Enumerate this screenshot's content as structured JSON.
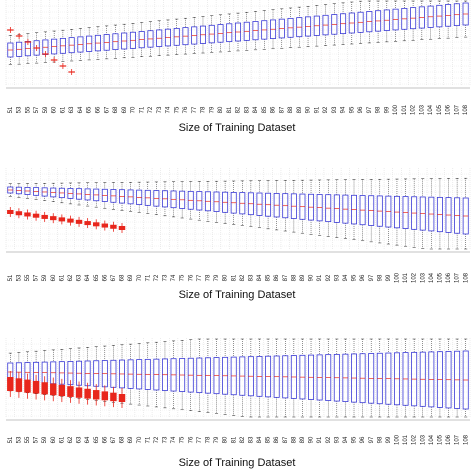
{
  "chart_data": [
    {
      "type": "box",
      "xlabel": "Size of Training Dataset",
      "tick_labels": [
        "51",
        "53",
        "55",
        "57",
        "59",
        "60",
        "61",
        "63",
        "64",
        "65",
        "66",
        "67",
        "68",
        "69",
        "70",
        "71",
        "72",
        "73",
        "74",
        "75",
        "76",
        "77",
        "78",
        "79",
        "80",
        "81",
        "82",
        "83",
        "84",
        "85",
        "86",
        "87",
        "88",
        "89",
        "90",
        "91",
        "92",
        "93",
        "94",
        "95",
        "96",
        "97",
        "98",
        "99",
        "100",
        "101",
        "102",
        "103",
        "104",
        "105",
        "106",
        "107",
        "108"
      ],
      "grid": true,
      "series": [
        {
          "color": "#e8261c",
          "dataset_sizes": [
            "51",
            "53",
            "55",
            "57",
            "59",
            "60",
            "61",
            "63",
            "64",
            "65",
            "66",
            "67"
          ]
        },
        {
          "color": "#3a3ad6",
          "dataset_sizes_from": "51",
          "dataset_sizes_to": "108"
        }
      ]
    },
    {
      "type": "box",
      "xlabel": "Size of Training Dataset",
      "tick_labels": [
        "51",
        "53",
        "55",
        "57",
        "59",
        "60",
        "61",
        "62",
        "63",
        "64",
        "65",
        "66",
        "67",
        "68",
        "69",
        "70",
        "71",
        "72",
        "73",
        "74",
        "75",
        "76",
        "77",
        "78",
        "79",
        "80",
        "81",
        "82",
        "83",
        "84",
        "85",
        "86",
        "87",
        "88",
        "89",
        "90",
        "91",
        "92",
        "93",
        "94",
        "95",
        "96",
        "97",
        "98",
        "99",
        "100",
        "101",
        "102",
        "103",
        "104",
        "105",
        "106",
        "107",
        "108"
      ],
      "grid": true,
      "series": [
        {
          "color": "#e8261c",
          "dataset_sizes": [
            "51",
            "53",
            "55",
            "57",
            "59",
            "60",
            "61",
            "62",
            "63",
            "64",
            "65",
            "66",
            "67",
            "68"
          ]
        },
        {
          "color": "#3a3ad6",
          "dataset_sizes_from": "51",
          "dataset_sizes_to": "108"
        }
      ]
    },
    {
      "type": "box",
      "xlabel": "Size of Training Dataset",
      "tick_labels": [
        "51",
        "53",
        "55",
        "57",
        "59",
        "60",
        "61",
        "62",
        "63",
        "64",
        "65",
        "66",
        "67",
        "68",
        "69",
        "70",
        "71",
        "72",
        "73",
        "74",
        "75",
        "76",
        "77",
        "78",
        "79",
        "80",
        "81",
        "82",
        "83",
        "84",
        "85",
        "86",
        "87",
        "88",
        "89",
        "90",
        "91",
        "92",
        "93",
        "94",
        "95",
        "96",
        "97",
        "98",
        "99",
        "100",
        "101",
        "102",
        "103",
        "104",
        "105",
        "106",
        "107",
        "108"
      ],
      "grid": true,
      "series": [
        {
          "color": "#e8261c",
          "dataset_sizes": [
            "51",
            "53",
            "55",
            "57",
            "59",
            "60",
            "61",
            "62",
            "63",
            "64",
            "65",
            "66",
            "67",
            "68"
          ]
        },
        {
          "color": "#3a3ad6",
          "dataset_sizes_from": "51",
          "dataset_sizes_to": "108"
        }
      ]
    }
  ]
}
